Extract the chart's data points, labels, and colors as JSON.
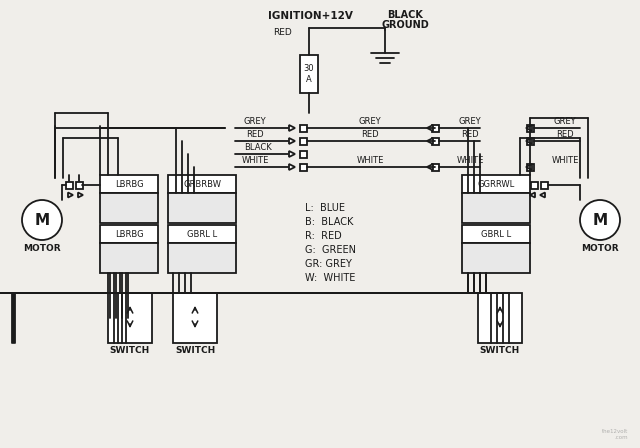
{
  "bg_color": "#f0eeea",
  "line_color": "#1a1a1a",
  "lw": 1.3,
  "legend_lines": [
    "L:  BLUE",
    "B:  BLACK",
    "R:  RED",
    "G:  GREEN",
    "GR: GREY",
    "W:  WHITE"
  ],
  "ignition_label": "IGNITION+12V",
  "red_label": "RED",
  "black_label": "BLACK",
  "ground_label": "GROUND",
  "fuse_text": "30\nA",
  "left_top_labels": [
    "LBRBG",
    "GRBRBW"
  ],
  "left_bot_labels": [
    "LBRBG",
    "GBRL L"
  ],
  "right_top_label": "GGRRWL",
  "right_bot_label": "GBRL L",
  "wire_labels_left": [
    "GREY",
    "RED",
    "BLACK",
    "WHITE"
  ],
  "wire_labels_mid_grey": "GREY",
  "wire_labels_mid_red": "RED",
  "wire_labels_mid_white": "WHITE",
  "wire_labels_right_grey": "GREY",
  "wire_labels_right_red": "RED",
  "wire_labels_right_white": "WHITE",
  "motor_label": "MOTOR",
  "switch_labels": [
    "SWITCH",
    "SWITCH",
    "SWITCH"
  ]
}
